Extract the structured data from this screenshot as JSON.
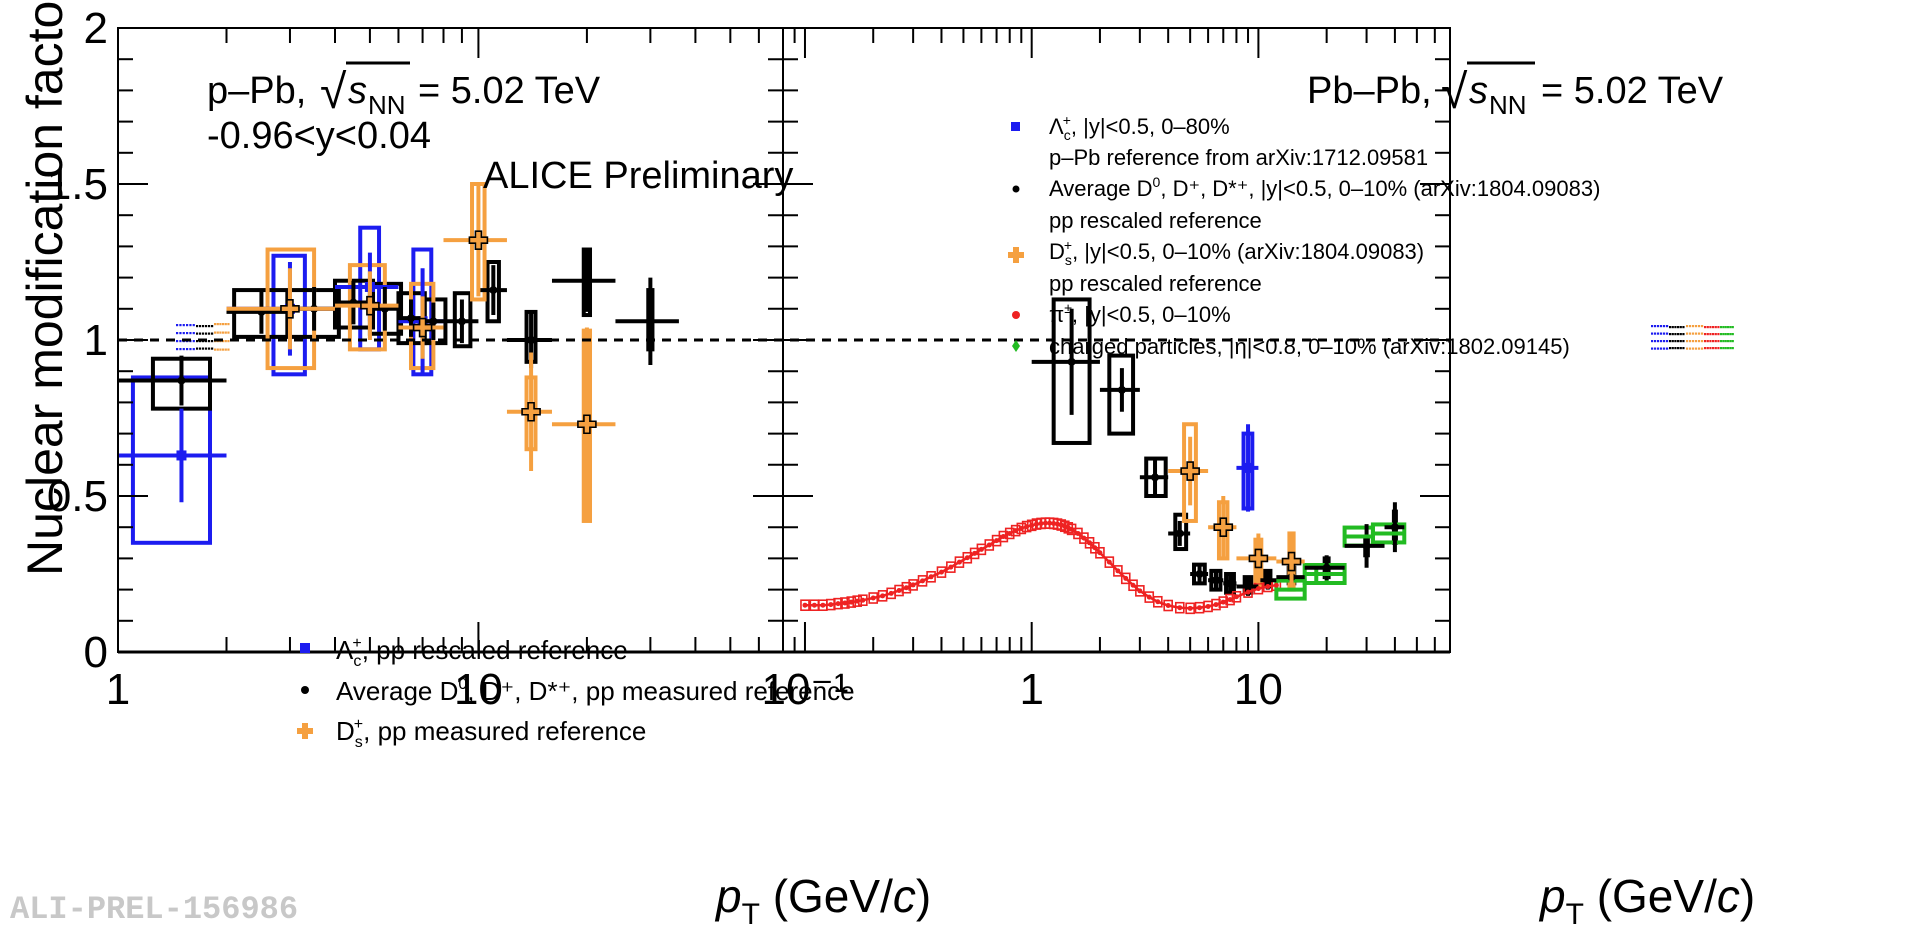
{
  "watermark": "ALI-PREL-156986",
  "colors": {
    "blue": "#1c1cf0",
    "black": "#000000",
    "orange": "#f5a040",
    "red": "#ee2222",
    "green": "#22bb22"
  },
  "chart_data": [
    {
      "type": "scatter",
      "id": "left",
      "ylabel": "Nuclear modification factor",
      "xlabel": "p_T (GeV/c)",
      "xscale": "log",
      "xlim": [
        1,
        70
      ],
      "ylim": [
        0,
        2
      ],
      "yticks": [
        "0",
        "0.5",
        "1",
        "1.5",
        "2"
      ],
      "xticks": [
        "1",
        "10"
      ],
      "header": {
        "collision": "p–Pb,",
        "energy": "= 5.02 TeV",
        "sqrt": "√",
        "s": "s",
        "nn": "NN",
        "rapidity": "-0.96<y<0.04",
        "experiment": "ALICE Preliminary"
      },
      "legend": [
        {
          "name": "Λc+, pp rescaled reference",
          "main": "Λ",
          "sub": "c",
          "sup": "+",
          "rest": ", pp rescaled reference",
          "marker": "square",
          "color": "blue"
        },
        {
          "name": "Average D0, D+, D*+, pp measured reference",
          "main": "Average D",
          "sub": "",
          "sup": "0",
          "rest": ", D⁺, D*⁺, pp measured reference",
          "marker": "dot",
          "color": "black"
        },
        {
          "name": "Ds+, pp measured reference",
          "main": "D",
          "sub": "s",
          "sup": "+",
          "rest": ", pp measured reference",
          "marker": "cross",
          "color": "orange"
        }
      ],
      "series": [
        {
          "name": "Lc_pPb",
          "color": "blue",
          "marker": "square",
          "points": [
            {
              "x": 1.5,
              "y": 0.63,
              "xl": 1.0,
              "xh": 2.0,
              "el": 0.15,
              "eh": 0.15,
              "bxl": 1.1,
              "bxh": 1.8,
              "bl": 0.35,
              "bh": 0.88
            },
            {
              "x": 3.0,
              "y": 1.1,
              "xl": 2.0,
              "xh": 4.0,
              "el": 0.15,
              "eh": 0.15,
              "bxl": 2.7,
              "bxh": 3.3,
              "bl": 0.89,
              "bh": 1.27
            },
            {
              "x": 5.0,
              "y": 1.17,
              "xl": 4.0,
              "xh": 6.0,
              "el": 0.11,
              "eh": 0.11,
              "bxl": 4.7,
              "bxh": 5.3,
              "bl": 0.97,
              "bh": 1.36
            },
            {
              "x": 7.0,
              "y": 1.06,
              "xl": 6.0,
              "xh": 8.0,
              "el": 0.17,
              "eh": 0.17,
              "bxl": 6.6,
              "bxh": 7.4,
              "bl": 0.89,
              "bh": 1.29
            }
          ]
        },
        {
          "name": "Dave_pPb",
          "color": "black",
          "marker": "dot",
          "points": [
            {
              "x": 1.5,
              "y": 0.87,
              "xl": 1.0,
              "xh": 2.0,
              "el": 0.08,
              "eh": 0.08,
              "bxl": 1.25,
              "bxh": 1.8,
              "bl": 0.78,
              "bh": 0.94
            },
            {
              "x": 2.5,
              "y": 1.09,
              "xl": 2.0,
              "xh": 3.0,
              "el": 0.07,
              "eh": 0.07,
              "bxl": 2.1,
              "bxh": 2.95,
              "bl": 1.01,
              "bh": 1.16
            },
            {
              "x": 3.5,
              "y": 1.1,
              "xl": 3.0,
              "xh": 4.0,
              "el": 0.07,
              "eh": 0.07,
              "bxl": 3.0,
              "bxh": 4.1,
              "bl": 1.01,
              "bh": 1.16
            },
            {
              "x": 4.5,
              "y": 1.12,
              "xl": 4.0,
              "xh": 5.0,
              "el": 0.07,
              "eh": 0.07,
              "bxl": 4.0,
              "bxh": 5.1,
              "bl": 1.04,
              "bh": 1.19
            },
            {
              "x": 5.5,
              "y": 1.1,
              "xl": 5.0,
              "xh": 6.0,
              "el": 0.07,
              "eh": 0.07,
              "bxl": 5.0,
              "bxh": 6.1,
              "bl": 1.02,
              "bh": 1.18
            },
            {
              "x": 6.5,
              "y": 1.07,
              "xl": 6.0,
              "xh": 7.0,
              "el": 0.06,
              "eh": 0.06,
              "bxl": 6.0,
              "bxh": 7.1,
              "bl": 0.99,
              "bh": 1.15
            },
            {
              "x": 7.5,
              "y": 1.06,
              "xl": 7.0,
              "xh": 8.0,
              "el": 0.06,
              "eh": 0.06,
              "bxl": 7.0,
              "bxh": 8.1,
              "bl": 0.99,
              "bh": 1.13
            },
            {
              "x": 9.0,
              "y": 1.06,
              "xl": 8.0,
              "xh": 10.0,
              "el": 0.07,
              "eh": 0.07,
              "bxl": 8.6,
              "bxh": 9.5,
              "bl": 0.98,
              "bh": 1.15
            },
            {
              "x": 11.0,
              "y": 1.16,
              "xl": 10.0,
              "xh": 12.0,
              "el": 0.08,
              "eh": 0.08,
              "bxl": 10.6,
              "bxh": 11.4,
              "bl": 1.06,
              "bh": 1.25
            },
            {
              "x": 14.0,
              "y": 1.0,
              "xl": 12.0,
              "xh": 16.0,
              "el": 0.09,
              "eh": 0.09,
              "bxl": 13.6,
              "bxh": 14.4,
              "bl": 0.93,
              "bh": 1.09
            },
            {
              "x": 20.0,
              "y": 1.19,
              "xl": 16.0,
              "xh": 24.0,
              "el": 0.1,
              "eh": 0.1,
              "bxl": 19.6,
              "bxh": 20.4,
              "bl": 1.08,
              "bh": 1.29
            },
            {
              "x": 30.0,
              "y": 1.06,
              "xl": 24.0,
              "xh": 36.0,
              "el": 0.14,
              "eh": 0.14,
              "bxl": 29.6,
              "bxh": 30.4,
              "bl": 0.97,
              "bh": 1.16
            }
          ]
        },
        {
          "name": "Ds_pPb",
          "color": "orange",
          "marker": "cross",
          "points": [
            {
              "x": 3.0,
              "y": 1.1,
              "xl": 2.0,
              "xh": 4.0,
              "el": 0.13,
              "eh": 0.13,
              "bxl": 2.6,
              "bxh": 3.5,
              "bl": 0.91,
              "bh": 1.29
            },
            {
              "x": 5.0,
              "y": 1.11,
              "xl": 4.0,
              "xh": 6.0,
              "el": 0.11,
              "eh": 0.11,
              "bxl": 4.4,
              "bxh": 5.5,
              "bl": 0.97,
              "bh": 1.24
            },
            {
              "x": 7.0,
              "y": 1.04,
              "xl": 6.0,
              "xh": 8.0,
              "el": 0.1,
              "eh": 0.1,
              "bxl": 6.5,
              "bxh": 7.5,
              "bl": 0.91,
              "bh": 1.18
            },
            {
              "x": 10.0,
              "y": 1.32,
              "xl": 8.0,
              "xh": 12.0,
              "el": 0.18,
              "eh": 0.18,
              "bxl": 9.6,
              "bxh": 10.4,
              "bl": 1.13,
              "bh": 1.5
            },
            {
              "x": 14.0,
              "y": 0.77,
              "xl": 12.0,
              "xh": 16.0,
              "el": 0.19,
              "eh": 0.19,
              "bxl": 13.6,
              "bxh": 14.4,
              "bl": 0.65,
              "bh": 0.88
            },
            {
              "x": 20.0,
              "y": 0.73,
              "xl": 16.0,
              "xh": 24.0,
              "el": 0.31,
              "eh": 0.31,
              "bxl": 19.6,
              "bxh": 20.4,
              "bl": 0.42,
              "bh": 1.03
            }
          ]
        }
      ]
    },
    {
      "type": "scatter",
      "id": "right",
      "xlabel": "p_T (GeV/c)",
      "xscale": "log",
      "xlim": [
        0.08,
        70
      ],
      "ylim": [
        0,
        2
      ],
      "xticks": [
        "10⁻¹",
        "1",
        "10"
      ],
      "header": {
        "collision": "Pb–Pb,",
        "energy": "= 5.02 TeV",
        "sqrt": "√",
        "s": "s",
        "nn": "NN"
      },
      "legend": [
        {
          "name": "Λc+, |y|<0.5, 0–80%",
          "line1": ", |y|<0.5, 0–80%",
          "line2": "p–Pb reference from arXiv:1712.09581",
          "main": "Λ",
          "sub": "c",
          "sup": "+",
          "marker": "square",
          "color": "blue"
        },
        {
          "name": "Average D0, D+, D*+, |y|<0.5, 0–10% (arXiv:1804.09083)",
          "line1": ", D⁺, D*⁺, |y|<0.5, 0–10% (arXiv:1804.09083)",
          "line2": "pp rescaled reference",
          "main": "Average D",
          "sub": "",
          "sup": "0",
          "marker": "dot",
          "color": "black"
        },
        {
          "name": "Ds+, |y|<0.5, 0–10% (arXiv:1804.09083)",
          "line1": ", |y|<0.5, 0–10% (arXiv:1804.09083)",
          "line2": "pp rescaled reference",
          "main": "D",
          "sub": "s",
          "sup": "+",
          "marker": "cross",
          "color": "orange"
        },
        {
          "name": "π±, |y|<0.5, 0–10%",
          "line1": ", |y|<0.5, 0–10%",
          "line2": "",
          "main": "π",
          "sub": "",
          "sup": "±",
          "marker": "dot",
          "color": "red"
        },
        {
          "name": "charged particles, |η|<0.8, 0–10% (arXiv:1802.09145)",
          "line1": "charged particles, |η|<0.8, 0–10% (arXiv:1802.09145)",
          "line2": "",
          "main": "",
          "sub": "",
          "sup": "",
          "marker": "diamond",
          "color": "green"
        }
      ],
      "series": [
        {
          "name": "Lc_PbPb",
          "color": "blue",
          "marker": "square",
          "points": [
            {
              "x": 9.0,
              "y": 0.59,
              "xl": 8.0,
              "xh": 10.0,
              "el": 0.14,
              "eh": 0.14,
              "bxl": 8.6,
              "bxh": 9.4,
              "bl": 0.46,
              "bh": 0.7
            }
          ]
        },
        {
          "name": "Dave_PbPb",
          "color": "black",
          "marker": "dot",
          "points": [
            {
              "x": 1.5,
              "y": 0.93,
              "xl": 1.0,
              "xh": 2.0,
              "el": 0.17,
              "eh": 0.17,
              "bxl": 1.25,
              "bxh": 1.8,
              "bl": 0.67,
              "bh": 1.13
            },
            {
              "x": 2.5,
              "y": 0.84,
              "xl": 2.0,
              "xh": 3.0,
              "el": 0.07,
              "eh": 0.07,
              "bxl": 2.2,
              "bxh": 2.8,
              "bl": 0.7,
              "bh": 0.95
            },
            {
              "x": 3.5,
              "y": 0.56,
              "xl": 3.0,
              "xh": 4.0,
              "el": 0.06,
              "eh": 0.06,
              "bxl": 3.2,
              "bxh": 3.9,
              "bl": 0.5,
              "bh": 0.62
            },
            {
              "x": 4.5,
              "y": 0.38,
              "xl": 4.0,
              "xh": 5.0,
              "el": 0.04,
              "eh": 0.04,
              "bxl": 4.3,
              "bxh": 4.8,
              "bl": 0.33,
              "bh": 0.44
            },
            {
              "x": 5.5,
              "y": 0.25,
              "xl": 5.0,
              "xh": 6.0,
              "el": 0.03,
              "eh": 0.03,
              "bxl": 5.2,
              "bxh": 5.8,
              "bl": 0.22,
              "bh": 0.28
            },
            {
              "x": 6.5,
              "y": 0.23,
              "xl": 6.0,
              "xh": 7.0,
              "el": 0.03,
              "eh": 0.03,
              "bxl": 6.2,
              "bxh": 6.8,
              "bl": 0.2,
              "bh": 0.26
            },
            {
              "x": 7.5,
              "y": 0.22,
              "xl": 7.0,
              "xh": 8.0,
              "el": 0.03,
              "eh": 0.03,
              "bxl": 7.2,
              "bxh": 7.8,
              "bl": 0.19,
              "bh": 0.25
            },
            {
              "x": 9.0,
              "y": 0.21,
              "xl": 8.0,
              "xh": 10.0,
              "el": 0.03,
              "eh": 0.03,
              "bxl": 8.7,
              "bxh": 9.3,
              "bl": 0.19,
              "bh": 0.24
            },
            {
              "x": 11.0,
              "y": 0.23,
              "xl": 10.0,
              "xh": 12.0,
              "el": 0.03,
              "eh": 0.03,
              "bxl": 10.7,
              "bxh": 11.3,
              "bl": 0.21,
              "bh": 0.26
            },
            {
              "x": 14.0,
              "y": 0.24,
              "xl": 12.0,
              "xh": 16.0,
              "el": 0.03,
              "eh": 0.03,
              "bxl": 13.6,
              "bxh": 14.4,
              "bl": 0.22,
              "bh": 0.27
            },
            {
              "x": 20.0,
              "y": 0.27,
              "xl": 16.0,
              "xh": 24.0,
              "el": 0.04,
              "eh": 0.04,
              "bxl": 19.6,
              "bxh": 20.4,
              "bl": 0.24,
              "bh": 0.3
            },
            {
              "x": 30.0,
              "y": 0.34,
              "xl": 24.0,
              "xh": 36.0,
              "el": 0.07,
              "eh": 0.07,
              "bxl": 29.6,
              "bxh": 30.4,
              "bl": 0.31,
              "bh": 0.37
            },
            {
              "x": 40.0,
              "y": 0.4,
              "xl": 36.0,
              "xh": 44.0,
              "el": 0.08,
              "eh": 0.08,
              "bxl": 39.6,
              "bxh": 40.4,
              "bl": 0.35,
              "bh": 0.45
            }
          ]
        },
        {
          "name": "Ds_PbPb",
          "color": "orange",
          "marker": "cross",
          "points": [
            {
              "x": 5.0,
              "y": 0.58,
              "xl": 4.0,
              "xh": 6.0,
              "el": 0.11,
              "eh": 0.11,
              "bxl": 4.7,
              "bxh": 5.3,
              "bl": 0.42,
              "bh": 0.73
            },
            {
              "x": 7.0,
              "y": 0.4,
              "xl": 6.0,
              "xh": 8.0,
              "el": 0.1,
              "eh": 0.1,
              "bxl": 6.7,
              "bxh": 7.3,
              "bl": 0.3,
              "bh": 0.48
            },
            {
              "x": 10.0,
              "y": 0.3,
              "xl": 8.0,
              "xh": 12.0,
              "el": 0.08,
              "eh": 0.08,
              "bxl": 9.7,
              "bxh": 10.3,
              "bl": 0.21,
              "bh": 0.36
            },
            {
              "x": 14.0,
              "y": 0.29,
              "xl": 12.0,
              "xh": 16.0,
              "el": 0.09,
              "eh": 0.09,
              "bxl": 13.7,
              "bxh": 14.3,
              "bl": 0.2,
              "bh": 0.38
            }
          ]
        },
        {
          "name": "pi_PbPb",
          "color": "red",
          "marker": "dot",
          "x": [
            0.1,
            0.11,
            0.12,
            0.13,
            0.14,
            0.15,
            0.16,
            0.17,
            0.18,
            0.2,
            0.22,
            0.24,
            0.26,
            0.28,
            0.3,
            0.33,
            0.36,
            0.4,
            0.44,
            0.48,
            0.52,
            0.56,
            0.6,
            0.65,
            0.7,
            0.75,
            0.8,
            0.85,
            0.9,
            0.95,
            1.0,
            1.05,
            1.1,
            1.15,
            1.2,
            1.25,
            1.3,
            1.35,
            1.4,
            1.45,
            1.5,
            1.6,
            1.7,
            1.8,
            1.9,
            2.0,
            2.2,
            2.4,
            2.6,
            2.8,
            3.0,
            3.3,
            3.6,
            4.0,
            4.5,
            5.0,
            5.5,
            6.0,
            6.5,
            7.0,
            7.5,
            8.0,
            9.0,
            10.0,
            11.0,
            12.0
          ],
          "y": [
            0.15,
            0.15,
            0.15,
            0.152,
            0.155,
            0.157,
            0.16,
            0.163,
            0.166,
            0.173,
            0.18,
            0.188,
            0.197,
            0.206,
            0.215,
            0.228,
            0.241,
            0.256,
            0.272,
            0.288,
            0.302,
            0.316,
            0.329,
            0.343,
            0.357,
            0.37,
            0.38,
            0.389,
            0.396,
            0.402,
            0.406,
            0.41,
            0.412,
            0.413,
            0.413,
            0.412,
            0.41,
            0.407,
            0.403,
            0.398,
            0.393,
            0.38,
            0.365,
            0.35,
            0.334,
            0.318,
            0.288,
            0.26,
            0.236,
            0.214,
            0.196,
            0.176,
            0.161,
            0.149,
            0.142,
            0.14,
            0.142,
            0.146,
            0.152,
            0.16,
            0.168,
            0.177,
            0.192,
            0.203,
            0.21,
            0.214
          ]
        },
        {
          "name": "ch_PbPb",
          "color": "green",
          "marker": "diamond",
          "points": [
            {
              "x": 14.0,
              "y": 0.2,
              "xl": 12.0,
              "xh": 16.0
            },
            {
              "x": 18.0,
              "y": 0.25,
              "xl": 16.0,
              "xh": 20.0
            },
            {
              "x": 20.0,
              "y": 0.25,
              "xl": 18.0,
              "xh": 24.0
            },
            {
              "x": 28.0,
              "y": 0.37,
              "xl": 24.0,
              "xh": 32.0
            },
            {
              "x": 38.0,
              "y": 0.38,
              "xl": 32.0,
              "xh": 44.0
            }
          ]
        }
      ]
    }
  ]
}
